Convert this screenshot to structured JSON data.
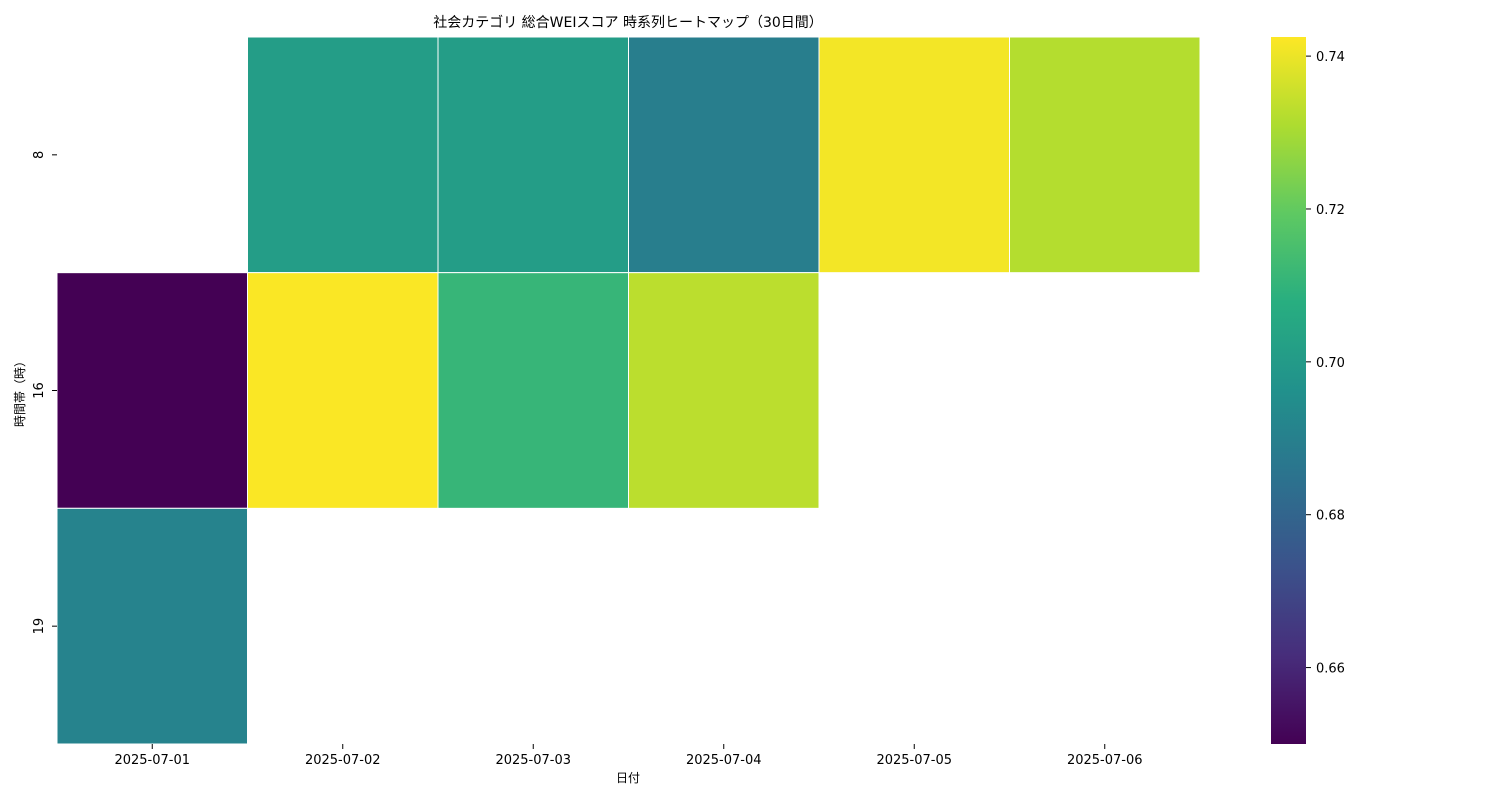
{
  "chart_data": {
    "type": "heatmap",
    "title": "社会カテゴリ 総合WEIスコア 時系列ヒートマップ（30日間）",
    "xlabel": "日付",
    "ylabel": "時間帯（時）",
    "x_categories": [
      "2025-07-01",
      "2025-07-02",
      "2025-07-03",
      "2025-07-04",
      "2025-07-05",
      "2025-07-06"
    ],
    "y_categories": [
      "8",
      "16",
      "19"
    ],
    "values": [
      [
        null,
        0.701,
        0.701,
        0.689,
        0.741,
        0.732
      ],
      [
        0.65,
        0.742,
        0.711,
        0.733,
        null,
        null
      ],
      [
        0.691,
        null,
        null,
        null,
        null,
        null
      ]
    ],
    "colorscale": "viridis",
    "colorbar": {
      "min": 0.65,
      "max": 0.7425,
      "ticks": [
        0.66,
        0.68,
        0.7,
        0.72,
        0.74
      ],
      "tick_labels": [
        "0.66",
        "0.68",
        "0.70",
        "0.72",
        "0.74"
      ]
    },
    "missing_color": "#ffffff",
    "cell_border_color": "#ffffff"
  }
}
